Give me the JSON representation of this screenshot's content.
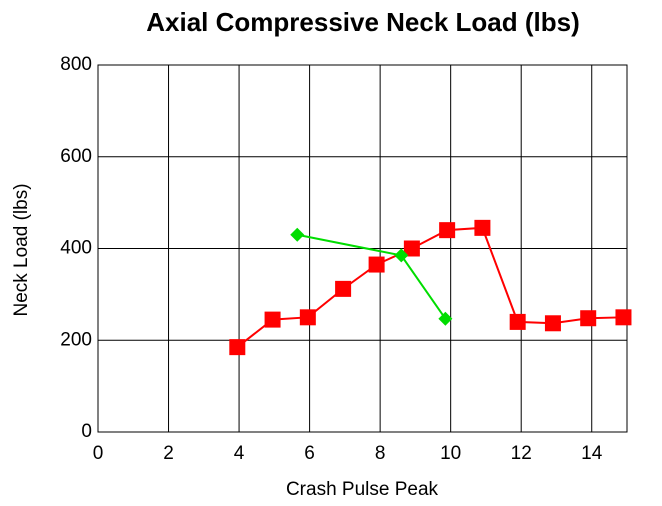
{
  "chart_data": {
    "type": "line",
    "title": "Axial Compressive Neck Load (lbs)",
    "xlabel": "Crash Pulse Peak",
    "ylabel": "Neck Load (lbs)",
    "xlim": [
      0,
      15
    ],
    "xticks": [
      0,
      2,
      4,
      6,
      8,
      10,
      12,
      14
    ],
    "ylim": [
      0,
      800
    ],
    "yticks": [
      0,
      200,
      400,
      600,
      800
    ],
    "grid": true,
    "series": [
      {
        "color": "#ff0000",
        "marker": "square",
        "x": [
          3.95,
          4.95,
          5.95,
          6.95,
          7.9,
          8.9,
          9.9,
          10.9,
          11.9,
          12.9,
          13.9,
          14.9
        ],
        "values": [
          185,
          245,
          250,
          312,
          365,
          400,
          440,
          445,
          240,
          237,
          248,
          250
        ]
      },
      {
        "color": "#00dd00",
        "marker": "diamond",
        "x": [
          5.65,
          8.6,
          9.85
        ],
        "values": [
          430,
          385,
          247
        ]
      }
    ]
  }
}
